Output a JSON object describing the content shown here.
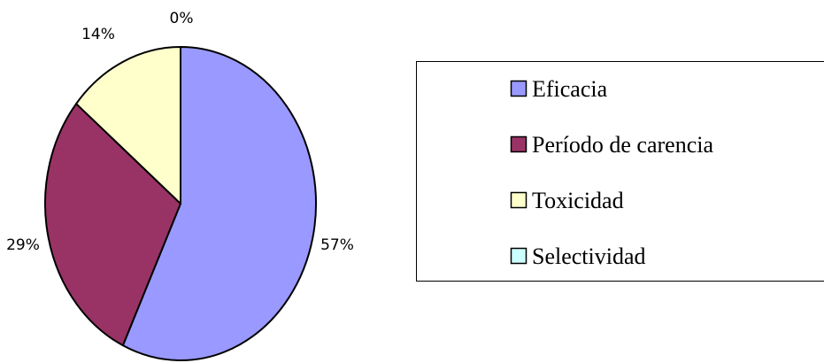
{
  "chart_data": {
    "type": "pie",
    "categories": [
      "Eficacia",
      "Período de carencia",
      "Toxicidad",
      "Selectividad"
    ],
    "values": [
      57,
      29,
      14,
      0
    ],
    "value_labels": [
      "57%",
      "29%",
      "14%",
      "0%"
    ],
    "colors": [
      "#9999ff",
      "#993366",
      "#ffffcc",
      "#ccffff"
    ],
    "slice_order": "clockwise from top",
    "legend_position": "right",
    "title": ""
  }
}
